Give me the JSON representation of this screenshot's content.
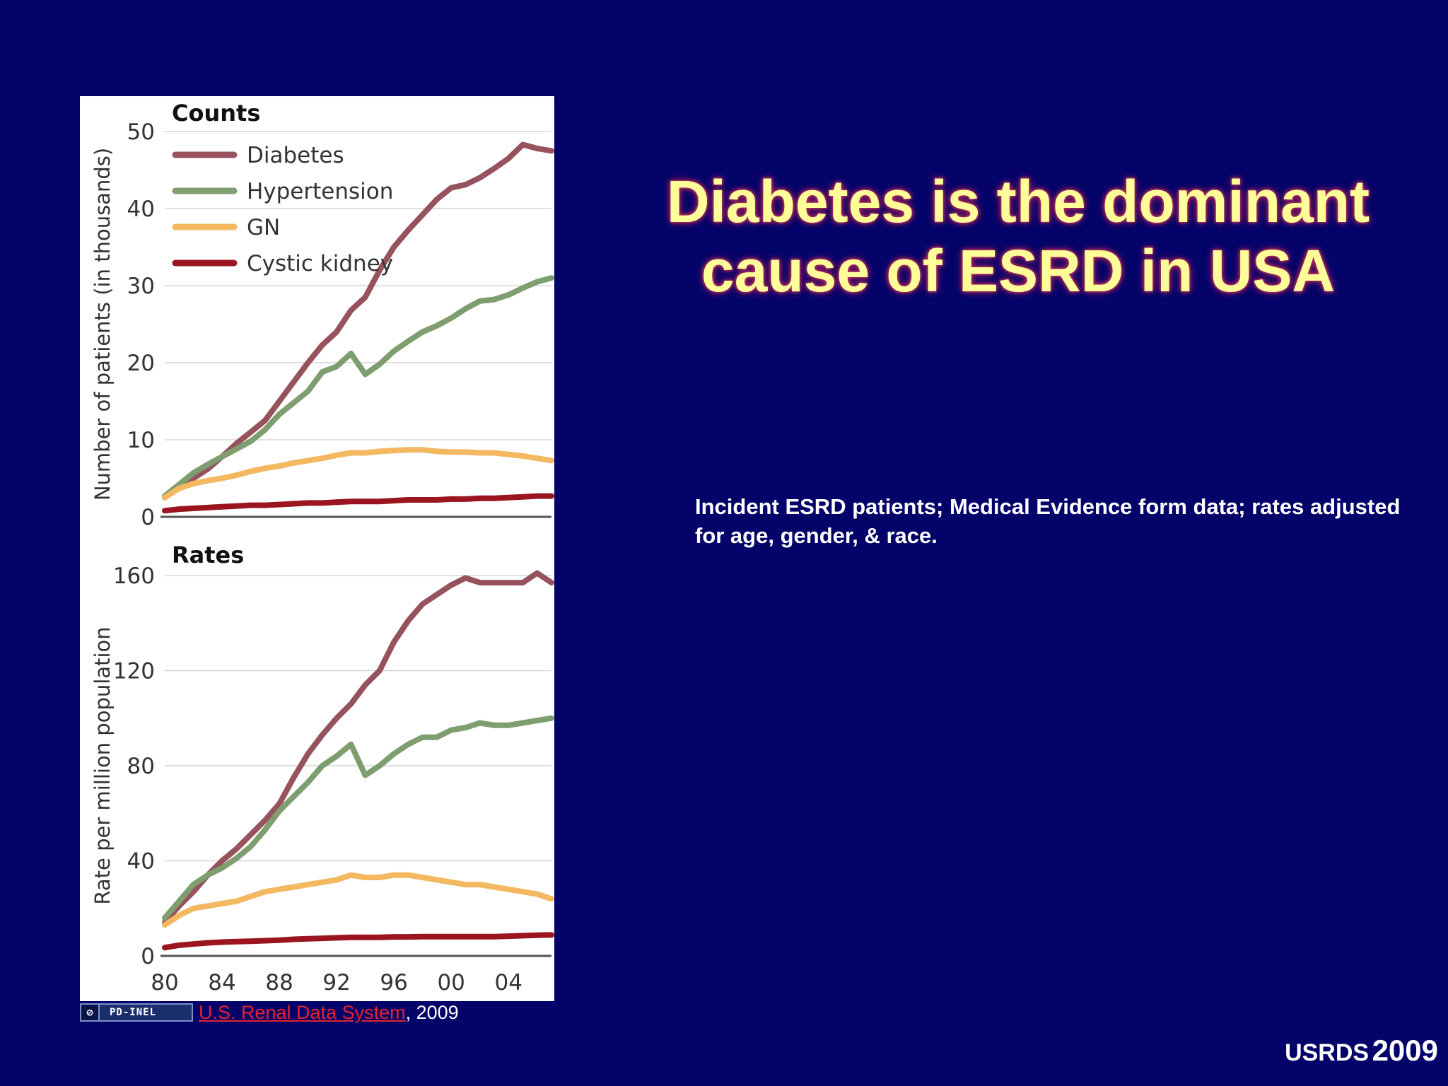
{
  "slide": {
    "title_lines": [
      "Diabetes is the dominant",
      "cause of ESRD in USA"
    ],
    "note": "Incident ESRD patients; Medical Evidence form data; rates adjusted for age, gender, & race.",
    "footer_name": "USRDS",
    "footer_year": "2009"
  },
  "credit": {
    "badge": "PD-INEL",
    "link_text": "U.S. Renal Data System",
    "suffix": ", 2009"
  },
  "colors": {
    "background": "#03036a",
    "title": "#ffff99",
    "diabetes": "#96535d",
    "hypertension": "#7e9e70",
    "gn": "#f3b860",
    "cystic": "#9a1520"
  },
  "x_tick_labels": [
    "80",
    "84",
    "88",
    "92",
    "96",
    "00",
    "04"
  ],
  "chart_data": [
    {
      "type": "line",
      "title": "Counts",
      "xlabel": "",
      "ylabel": "Number of patients (in thousands)",
      "xlim": [
        1980,
        2007
      ],
      "ylim": [
        0,
        50
      ],
      "yticks": [
        0,
        10,
        20,
        30,
        40,
        50
      ],
      "grid": true,
      "legend": "top-left",
      "x": [
        1980,
        1981,
        1982,
        1983,
        1984,
        1985,
        1986,
        1987,
        1988,
        1989,
        1990,
        1991,
        1992,
        1993,
        1994,
        1995,
        1996,
        1997,
        1998,
        1999,
        2000,
        2001,
        2002,
        2003,
        2004,
        2005,
        2006,
        2007
      ],
      "series": [
        {
          "name": "Diabetes",
          "color_key": "diabetes",
          "values": [
            2.5,
            3.8,
            5.0,
            6.2,
            7.8,
            9.5,
            11.0,
            12.5,
            15.0,
            17.5,
            20.0,
            22.3,
            24.0,
            26.8,
            28.5,
            32.0,
            35.0,
            37.2,
            39.2,
            41.2,
            42.7,
            43.1,
            44.0,
            45.2,
            46.5,
            48.3,
            47.8,
            47.5
          ]
        },
        {
          "name": "Hypertension",
          "color_key": "hypertension",
          "values": [
            2.7,
            4.2,
            5.7,
            6.8,
            7.8,
            8.8,
            9.8,
            11.3,
            13.3,
            14.8,
            16.3,
            18.8,
            19.5,
            21.2,
            18.5,
            19.8,
            21.5,
            22.8,
            24.0,
            24.8,
            25.8,
            27.0,
            28.0,
            28.2,
            28.8,
            29.7,
            30.5,
            31.0
          ]
        },
        {
          "name": "GN",
          "color_key": "gn",
          "values": [
            2.5,
            3.7,
            4.3,
            4.7,
            5.0,
            5.4,
            5.9,
            6.3,
            6.6,
            7.0,
            7.3,
            7.6,
            8.0,
            8.3,
            8.3,
            8.5,
            8.6,
            8.7,
            8.7,
            8.5,
            8.4,
            8.4,
            8.3,
            8.3,
            8.1,
            7.9,
            7.6,
            7.3
          ]
        },
        {
          "name": "Cystic kidney",
          "color_key": "cystic",
          "values": [
            0.8,
            1.0,
            1.1,
            1.2,
            1.3,
            1.4,
            1.5,
            1.5,
            1.6,
            1.7,
            1.8,
            1.8,
            1.9,
            2.0,
            2.0,
            2.0,
            2.1,
            2.2,
            2.2,
            2.2,
            2.3,
            2.3,
            2.4,
            2.4,
            2.5,
            2.6,
            2.7,
            2.7
          ]
        }
      ]
    },
    {
      "type": "line",
      "title": "Rates",
      "xlabel": "",
      "ylabel": "Rate per million population",
      "xlim": [
        1980,
        2007
      ],
      "ylim": [
        0,
        160
      ],
      "yticks": [
        0,
        40,
        80,
        120,
        160
      ],
      "xticks": [
        1980,
        1984,
        1988,
        1992,
        1996,
        2000,
        2004
      ],
      "grid": true,
      "x": [
        1980,
        1981,
        1982,
        1983,
        1984,
        1985,
        1986,
        1987,
        1988,
        1989,
        1990,
        1991,
        1992,
        1993,
        1994,
        1995,
        1996,
        1997,
        1998,
        1999,
        2000,
        2001,
        2002,
        2003,
        2004,
        2005,
        2006,
        2007
      ],
      "series": [
        {
          "name": "Diabetes",
          "color_key": "diabetes",
          "values": [
            14,
            21,
            27,
            34,
            40,
            45,
            51,
            57,
            64,
            75,
            85,
            93,
            100,
            106,
            114,
            120,
            132,
            141,
            148,
            152,
            156,
            159,
            157,
            157,
            157,
            157,
            161,
            157
          ]
        },
        {
          "name": "Hypertension",
          "color_key": "hypertension",
          "values": [
            16,
            23,
            30,
            34,
            37,
            41,
            46,
            53,
            61,
            67,
            73,
            80,
            84,
            89,
            76,
            80,
            85,
            89,
            92,
            92,
            95,
            96,
            98,
            97,
            97,
            98,
            99,
            100
          ]
        },
        {
          "name": "GN",
          "color_key": "gn",
          "values": [
            13,
            17,
            20,
            21,
            22,
            23,
            25,
            27,
            28,
            29,
            30,
            31,
            32,
            34,
            33,
            33,
            34,
            34,
            33,
            32,
            31,
            30,
            30,
            29,
            28,
            27,
            26,
            24
          ]
        },
        {
          "name": "Cystic kidney",
          "color_key": "cystic",
          "values": [
            3.5,
            4.5,
            5,
            5.5,
            5.8,
            6,
            6.2,
            6.4,
            6.6,
            7,
            7.2,
            7.4,
            7.6,
            7.8,
            7.8,
            7.8,
            8,
            8,
            8.1,
            8.1,
            8.1,
            8.1,
            8.1,
            8.1,
            8.3,
            8.5,
            8.7,
            8.8
          ]
        }
      ]
    }
  ]
}
